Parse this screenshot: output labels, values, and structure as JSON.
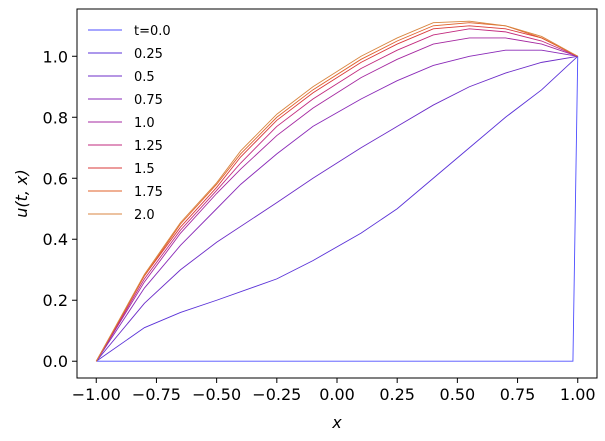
{
  "chart_data": {
    "type": "line",
    "xlabel": "x",
    "ylabel": "u(t, x)",
    "xlim": [
      -1.08,
      1.08
    ],
    "ylim": [
      -0.055,
      1.155
    ],
    "xticks": [
      -1.0,
      -0.75,
      -0.5,
      -0.25,
      0.0,
      0.25,
      0.5,
      0.75,
      1.0
    ],
    "xtick_labels": [
      "−1.00",
      "−0.75",
      "−0.50",
      "−0.25",
      "0.00",
      "0.25",
      "0.50",
      "0.75",
      "1.00"
    ],
    "yticks": [
      0.0,
      0.2,
      0.4,
      0.6,
      0.8,
      1.0
    ],
    "ytick_labels": [
      "0.0",
      "0.2",
      "0.4",
      "0.6",
      "0.8",
      "1.0"
    ],
    "grid": false,
    "legend_position": "top-left",
    "series": [
      {
        "name": "t=0.0",
        "color": "#4d4dff",
        "x": [
          -1.0,
          -0.98,
          0.98,
          1.0
        ],
        "y": [
          0.0,
          0.0,
          0.0,
          1.0
        ]
      },
      {
        "name": "0.25",
        "color": "#5a32d8",
        "x": [
          -1.0,
          -0.8,
          -0.65,
          -0.5,
          -0.25,
          -0.1,
          0.1,
          0.25,
          0.4,
          0.55,
          0.7,
          0.85,
          1.0
        ],
        "y": [
          0.0,
          0.11,
          0.16,
          0.2,
          0.27,
          0.33,
          0.42,
          0.5,
          0.6,
          0.7,
          0.8,
          0.89,
          1.0
        ]
      },
      {
        "name": "0.5",
        "color": "#6c2cc8",
        "x": [
          -1.0,
          -0.8,
          -0.65,
          -0.5,
          -0.25,
          -0.1,
          0.1,
          0.25,
          0.4,
          0.55,
          0.7,
          0.85,
          1.0
        ],
        "y": [
          0.0,
          0.19,
          0.3,
          0.39,
          0.52,
          0.6,
          0.7,
          0.77,
          0.84,
          0.9,
          0.945,
          0.98,
          1.0
        ]
      },
      {
        "name": "0.75",
        "color": "#8a2ab8",
        "x": [
          -1.0,
          -0.8,
          -0.65,
          -0.5,
          -0.4,
          -0.25,
          -0.1,
          0.1,
          0.25,
          0.4,
          0.55,
          0.7,
          0.85,
          1.0
        ],
        "y": [
          0.0,
          0.24,
          0.38,
          0.5,
          0.58,
          0.68,
          0.77,
          0.86,
          0.92,
          0.97,
          1.0,
          1.02,
          1.02,
          1.0
        ]
      },
      {
        "name": "1.0",
        "color": "#a528a0",
        "x": [
          -1.0,
          -0.8,
          -0.65,
          -0.5,
          -0.4,
          -0.25,
          -0.1,
          0.1,
          0.25,
          0.4,
          0.55,
          0.7,
          0.85,
          1.0
        ],
        "y": [
          0.0,
          0.26,
          0.42,
          0.55,
          0.63,
          0.74,
          0.83,
          0.93,
          0.99,
          1.04,
          1.06,
          1.06,
          1.04,
          1.0
        ]
      },
      {
        "name": "1.25",
        "color": "#c22a7e",
        "x": [
          -1.0,
          -0.8,
          -0.65,
          -0.5,
          -0.4,
          -0.25,
          -0.1,
          0.1,
          0.25,
          0.4,
          0.55,
          0.7,
          0.85,
          1.0
        ],
        "y": [
          0.0,
          0.27,
          0.43,
          0.56,
          0.65,
          0.77,
          0.86,
          0.96,
          1.02,
          1.07,
          1.09,
          1.08,
          1.05,
          1.0
        ]
      },
      {
        "name": "1.5",
        "color": "#d93a3a",
        "x": [
          -1.0,
          -0.8,
          -0.65,
          -0.5,
          -0.4,
          -0.25,
          -0.1,
          0.1,
          0.25,
          0.4,
          0.55,
          0.7,
          0.85,
          1.0
        ],
        "y": [
          0.0,
          0.28,
          0.44,
          0.57,
          0.67,
          0.79,
          0.88,
          0.98,
          1.04,
          1.09,
          1.1,
          1.09,
          1.06,
          1.0
        ]
      },
      {
        "name": "1.75",
        "color": "#e0602a",
        "x": [
          -1.0,
          -0.8,
          -0.65,
          -0.5,
          -0.4,
          -0.25,
          -0.1,
          0.1,
          0.25,
          0.4,
          0.55,
          0.7,
          0.85,
          1.0
        ],
        "y": [
          0.0,
          0.28,
          0.45,
          0.58,
          0.68,
          0.8,
          0.89,
          0.99,
          1.05,
          1.1,
          1.11,
          1.1,
          1.06,
          1.0
        ]
      },
      {
        "name": "2.0",
        "color": "#d88640",
        "x": [
          -1.0,
          -0.8,
          -0.65,
          -0.5,
          -0.4,
          -0.25,
          -0.1,
          0.1,
          0.25,
          0.4,
          0.55,
          0.7,
          0.85,
          1.0
        ],
        "y": [
          0.0,
          0.285,
          0.455,
          0.585,
          0.69,
          0.81,
          0.9,
          1.0,
          1.06,
          1.11,
          1.115,
          1.1,
          1.065,
          1.0
        ]
      }
    ]
  }
}
